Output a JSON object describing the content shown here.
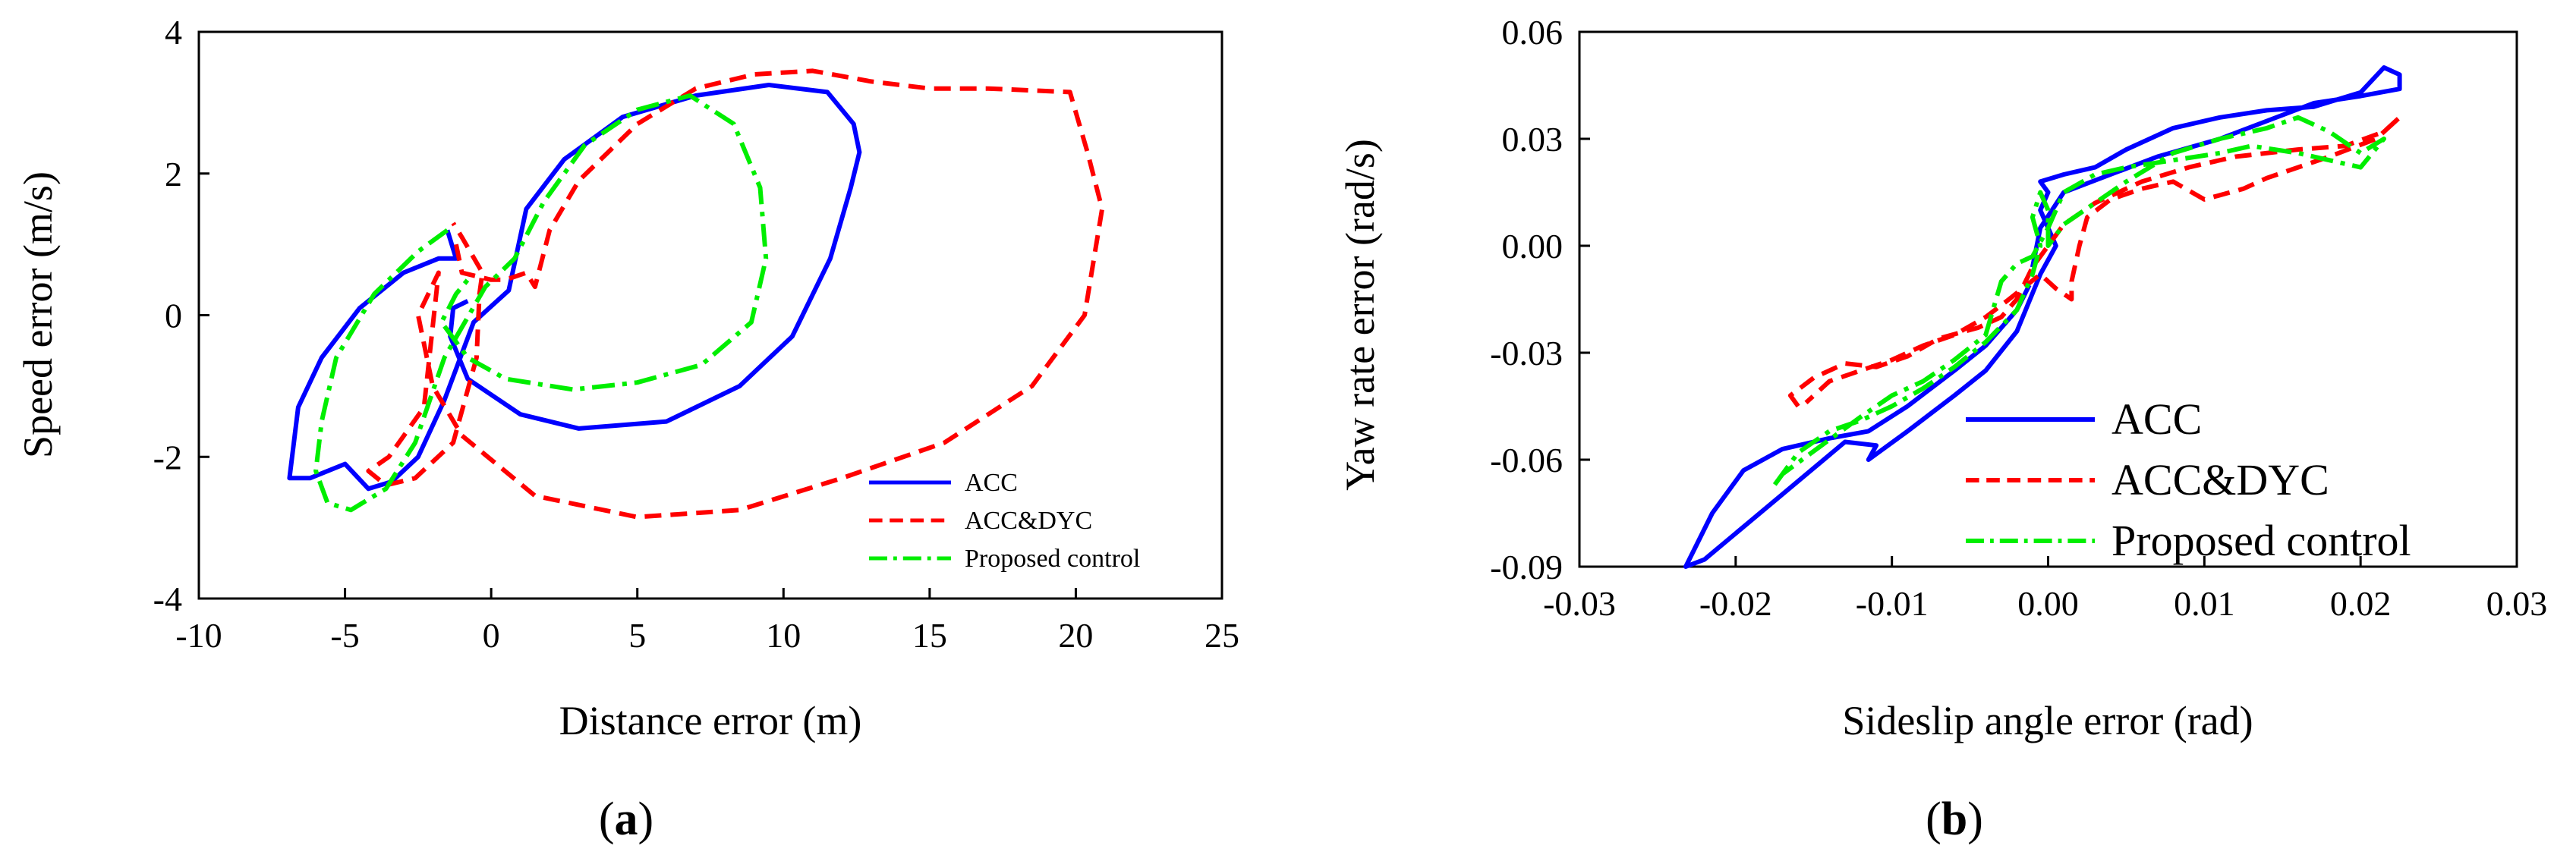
{
  "chart_data": [
    {
      "id": "a",
      "type": "line",
      "panel_label": "a",
      "xlabel": "Distance error (m)",
      "ylabel": "Speed error (m/s)",
      "xlim": [
        -10,
        25
      ],
      "ylim": [
        -4,
        4
      ],
      "xticks": [
        -10,
        -5,
        0,
        5,
        10,
        15,
        20,
        25
      ],
      "yticks": [
        -4,
        -2,
        0,
        2,
        4
      ],
      "xtick_labels": [
        "-10",
        "-5",
        "0",
        "5",
        "10",
        "15",
        "20",
        "25"
      ],
      "ytick_labels": [
        "-4",
        "-2",
        "0",
        "2",
        "4"
      ],
      "legend_position": "bottom-right",
      "series": [
        {
          "name": "ACC",
          "color": "#0000ff",
          "dash": "solid",
          "points": [
            [
              -1.5,
              1.2
            ],
            [
              -1.2,
              0.8
            ],
            [
              -1.8,
              0.8
            ],
            [
              -3,
              0.6
            ],
            [
              -4.5,
              0.1
            ],
            [
              -5.8,
              -0.6
            ],
            [
              -6.6,
              -1.3
            ],
            [
              -6.9,
              -2.3
            ],
            [
              -6.2,
              -2.3
            ],
            [
              -5,
              -2.1
            ],
            [
              -4.2,
              -2.45
            ],
            [
              -3.4,
              -2.35
            ],
            [
              -2.5,
              -2
            ],
            [
              -1.6,
              -1.2
            ],
            [
              -0.6,
              -0.1
            ],
            [
              0.6,
              0.35
            ],
            [
              1.2,
              1.5
            ],
            [
              2.5,
              2.2
            ],
            [
              4.5,
              2.8
            ],
            [
              7,
              3.1
            ],
            [
              9.5,
              3.25
            ],
            [
              11.5,
              3.15
            ],
            [
              12.4,
              2.7
            ],
            [
              12.6,
              2.3
            ],
            [
              12.3,
              1.8
            ],
            [
              11.6,
              0.8
            ],
            [
              10.3,
              -0.3
            ],
            [
              8.5,
              -1
            ],
            [
              6,
              -1.5
            ],
            [
              3,
              -1.6
            ],
            [
              1,
              -1.4
            ],
            [
              -0.8,
              -0.9
            ],
            [
              -1.4,
              -0.3
            ],
            [
              -1.3,
              0.1
            ],
            [
              -0.8,
              0.2
            ]
          ]
        },
        {
          "name": "ACC&DYC",
          "color": "#ff0000",
          "dash": "dashed",
          "points": [
            [
              -1.2,
              1
            ],
            [
              -1,
              0.6
            ],
            [
              0,
              0.5
            ],
            [
              0.5,
              0.5
            ],
            [
              1.2,
              0.6
            ],
            [
              1.5,
              0.4
            ],
            [
              2,
              1.2
            ],
            [
              3,
              1.9
            ],
            [
              5,
              2.7
            ],
            [
              7,
              3.2
            ],
            [
              9,
              3.4
            ],
            [
              11,
              3.45
            ],
            [
              13,
              3.3
            ],
            [
              15,
              3.2
            ],
            [
              17,
              3.2
            ],
            [
              19.8,
              3.15
            ],
            [
              20.4,
              2.3
            ],
            [
              20.9,
              1.5
            ],
            [
              20.3,
              0
            ],
            [
              18.5,
              -1
            ],
            [
              15.5,
              -1.8
            ],
            [
              12,
              -2.3
            ],
            [
              8.5,
              -2.75
            ],
            [
              5,
              -2.85
            ],
            [
              1.5,
              -2.55
            ],
            [
              -1,
              -1.7
            ],
            [
              -2,
              -1
            ],
            [
              -2.5,
              0
            ],
            [
              -1.8,
              0.6
            ],
            [
              -2.3,
              -1.3
            ],
            [
              -3.5,
              -2
            ],
            [
              -4.2,
              -2.2
            ],
            [
              -3.6,
              -2.4
            ],
            [
              -2.6,
              -2.3
            ],
            [
              -1.3,
              -1.8
            ],
            [
              -0.5,
              -0.6
            ],
            [
              -0.4,
              0.3
            ],
            [
              -0.3,
              0.6
            ],
            [
              -1,
              1.1
            ],
            [
              -1.3,
              1.3
            ]
          ]
        },
        {
          "name": "Proposed control",
          "color": "#00ee00",
          "dash": "dashdot",
          "points": [
            [
              -1.5,
              1.2
            ],
            [
              -2.5,
              0.9
            ],
            [
              -4,
              0.3
            ],
            [
              -5.3,
              -0.6
            ],
            [
              -5.8,
              -1.5
            ],
            [
              -6,
              -2.2
            ],
            [
              -5.6,
              -2.65
            ],
            [
              -4.8,
              -2.75
            ],
            [
              -3.6,
              -2.45
            ],
            [
              -2.6,
              -1.8
            ],
            [
              -1.6,
              -0.6
            ],
            [
              -0.2,
              0.4
            ],
            [
              0.8,
              0.8
            ],
            [
              1.8,
              1.6
            ],
            [
              3.2,
              2.4
            ],
            [
              5,
              2.9
            ],
            [
              6.8,
              3.1
            ],
            [
              8.3,
              2.7
            ],
            [
              9.2,
              1.8
            ],
            [
              9.4,
              0.8
            ],
            [
              8.9,
              -0.1
            ],
            [
              7.2,
              -0.7
            ],
            [
              5,
              -0.95
            ],
            [
              2.8,
              -1.05
            ],
            [
              0.5,
              -0.9
            ],
            [
              -0.8,
              -0.6
            ],
            [
              -1.7,
              -0.1
            ],
            [
              -1.2,
              0.3
            ],
            [
              -0.8,
              0.5
            ]
          ]
        }
      ]
    },
    {
      "id": "b",
      "type": "line",
      "panel_label": "b",
      "xlabel": "Sideslip angle error (rad)",
      "ylabel": "Yaw rate error (rad/s)",
      "xlim": [
        -0.03,
        0.03
      ],
      "ylim": [
        -0.09,
        0.06
      ],
      "xticks": [
        -0.03,
        -0.02,
        -0.01,
        0.0,
        0.01,
        0.02,
        0.03
      ],
      "yticks": [
        -0.09,
        -0.06,
        -0.03,
        0.0,
        0.03,
        0.06
      ],
      "xtick_labels": [
        "-0.03",
        "-0.02",
        "-0.01",
        "0.00",
        "0.01",
        "0.02",
        "0.03"
      ],
      "ytick_labels": [
        "-0.09",
        "-0.06",
        "-0.03",
        "0.00",
        "0.03",
        "0.06"
      ],
      "legend_position": "bottom-right",
      "series": [
        {
          "name": "ACC",
          "color": "#0000ff",
          "dash": "solid",
          "points": [
            [
              -0.0012,
              -0.011
            ],
            [
              -0.002,
              -0.018
            ],
            [
              -0.004,
              -0.028
            ],
            [
              -0.006,
              -0.035
            ],
            [
              -0.009,
              -0.045
            ],
            [
              -0.0115,
              -0.052
            ],
            [
              -0.014,
              -0.054
            ],
            [
              -0.017,
              -0.057
            ],
            [
              -0.0195,
              -0.063
            ],
            [
              -0.0215,
              -0.075
            ],
            [
              -0.0232,
              -0.09
            ],
            [
              -0.022,
              -0.088
            ],
            [
              -0.019,
              -0.077
            ],
            [
              -0.016,
              -0.066
            ],
            [
              -0.013,
              -0.055
            ],
            [
              -0.011,
              -0.056
            ],
            [
              -0.0115,
              -0.06
            ],
            [
              -0.009,
              -0.052
            ],
            [
              -0.006,
              -0.042
            ],
            [
              -0.004,
              -0.035
            ],
            [
              -0.002,
              -0.024
            ],
            [
              -0.0005,
              -0.008
            ],
            [
              0.0005,
              0.0
            ],
            [
              0.0,
              0.005
            ],
            [
              -0.0005,
              0.01
            ],
            [
              0.0,
              0.015
            ],
            [
              -0.0005,
              0.018
            ],
            [
              0.001,
              0.02
            ],
            [
              0.003,
              0.022
            ],
            [
              0.005,
              0.027
            ],
            [
              0.008,
              0.033
            ],
            [
              0.011,
              0.036
            ],
            [
              0.014,
              0.038
            ],
            [
              0.017,
              0.039
            ],
            [
              0.02,
              0.043
            ],
            [
              0.0215,
              0.05
            ],
            [
              0.0225,
              0.048
            ],
            [
              0.0225,
              0.044
            ],
            [
              0.02,
              0.042
            ],
            [
              0.017,
              0.04
            ],
            [
              0.014,
              0.035
            ],
            [
              0.011,
              0.03
            ],
            [
              0.007,
              0.025
            ],
            [
              0.004,
              0.02
            ],
            [
              0.001,
              0.015
            ],
            [
              -0.0005,
              0.005
            ],
            [
              -0.001,
              -0.006
            ]
          ]
        },
        {
          "name": "ACC&DYC",
          "color": "#ff0000",
          "dash": "dashed",
          "points": [
            [
              -0.016,
              -0.045
            ],
            [
              -0.0165,
              -0.042
            ],
            [
              -0.015,
              -0.037
            ],
            [
              -0.013,
              -0.033
            ],
            [
              -0.011,
              -0.034
            ],
            [
              -0.009,
              -0.031
            ],
            [
              -0.007,
              -0.026
            ],
            [
              -0.0045,
              -0.023
            ],
            [
              -0.003,
              -0.02
            ],
            [
              -0.002,
              -0.015
            ],
            [
              -0.001,
              -0.006
            ],
            [
              0.0,
              0.0
            ],
            [
              0.001,
              0.006
            ],
            [
              0.003,
              0.012
            ],
            [
              0.006,
              0.018
            ],
            [
              0.009,
              0.022
            ],
            [
              0.012,
              0.025
            ],
            [
              0.016,
              0.027
            ],
            [
              0.019,
              0.028
            ],
            [
              0.0215,
              0.032
            ],
            [
              0.0225,
              0.036
            ],
            [
              0.021,
              0.03
            ],
            [
              0.018,
              0.025
            ],
            [
              0.016,
              0.022
            ],
            [
              0.014,
              0.019
            ],
            [
              0.0125,
              0.016
            ],
            [
              0.01,
              0.013
            ],
            [
              0.008,
              0.018
            ],
            [
              0.006,
              0.016
            ],
            [
              0.004,
              0.013
            ],
            [
              0.0025,
              0.008
            ],
            [
              0.002,
              0.0
            ],
            [
              0.0015,
              -0.01
            ],
            [
              0.0015,
              -0.015
            ],
            [
              0.0005,
              -0.012
            ],
            [
              -0.0005,
              -0.008
            ],
            [
              -0.0025,
              -0.015
            ],
            [
              -0.004,
              -0.02
            ],
            [
              -0.006,
              -0.025
            ],
            [
              -0.008,
              -0.028
            ],
            [
              -0.01,
              -0.032
            ],
            [
              -0.012,
              -0.035
            ],
            [
              -0.014,
              -0.038
            ],
            [
              -0.0155,
              -0.044
            ]
          ]
        },
        {
          "name": "Proposed control",
          "color": "#00ee00",
          "dash": "dashdot",
          "points": [
            [
              -0.0175,
              -0.067
            ],
            [
              -0.016,
              -0.058
            ],
            [
              -0.014,
              -0.052
            ],
            [
              -0.012,
              -0.049
            ],
            [
              -0.01,
              -0.045
            ],
            [
              -0.008,
              -0.04
            ],
            [
              -0.006,
              -0.034
            ],
            [
              -0.004,
              -0.027
            ],
            [
              -0.002,
              -0.018
            ],
            [
              -0.001,
              -0.008
            ],
            [
              -0.0005,
              0.0
            ],
            [
              -0.001,
              0.008
            ],
            [
              -0.0005,
              0.015
            ],
            [
              0.0,
              0.01
            ],
            [
              0.0,
              0.0
            ],
            [
              0.001,
              0.006
            ],
            [
              0.003,
              0.012
            ],
            [
              0.005,
              0.018
            ],
            [
              0.008,
              0.026
            ],
            [
              0.011,
              0.03
            ],
            [
              0.014,
              0.033
            ],
            [
              0.016,
              0.036
            ],
            [
              0.018,
              0.032
            ],
            [
              0.02,
              0.026
            ],
            [
              0.0215,
              0.03
            ],
            [
              0.02,
              0.022
            ],
            [
              0.018,
              0.024
            ],
            [
              0.016,
              0.026
            ],
            [
              0.013,
              0.028
            ],
            [
              0.011,
              0.026
            ],
            [
              0.008,
              0.024
            ],
            [
              0.005,
              0.022
            ],
            [
              0.003,
              0.02
            ],
            [
              0.001,
              0.015
            ],
            [
              0.0,
              0.005
            ],
            [
              -0.001,
              -0.003
            ],
            [
              -0.002,
              -0.005
            ],
            [
              -0.003,
              -0.01
            ],
            [
              -0.004,
              -0.025
            ],
            [
              -0.006,
              -0.032
            ],
            [
              -0.008,
              -0.038
            ],
            [
              -0.01,
              -0.042
            ],
            [
              -0.012,
              -0.048
            ],
            [
              -0.0145,
              -0.056
            ],
            [
              -0.017,
              -0.064
            ]
          ]
        }
      ]
    }
  ]
}
